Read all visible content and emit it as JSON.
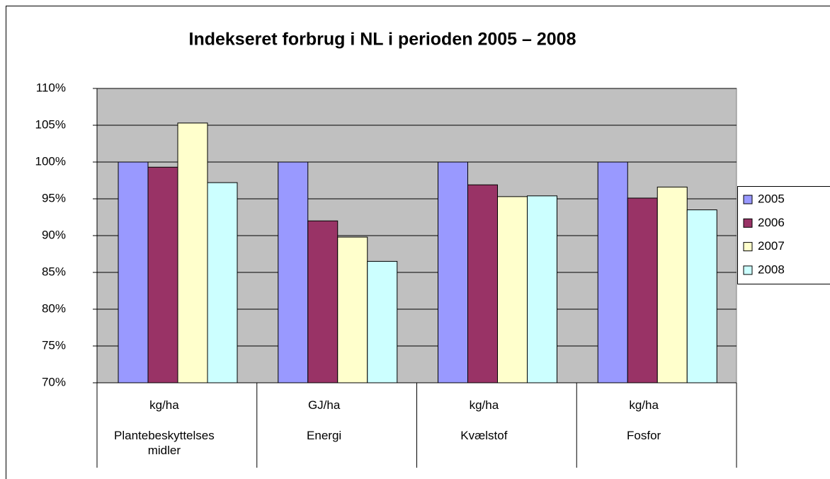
{
  "chart_data": {
    "type": "bar",
    "title": "Indekseret forbrug i NL  i perioden 2005 – 2008",
    "categories": [
      "Plantebeskyttelses midler",
      "Energi",
      "Kvælstof",
      "Fosfor"
    ],
    "units": [
      "kg/ha",
      "GJ/ha",
      "kg/ha",
      "kg/ha"
    ],
    "series": [
      {
        "name": "2005",
        "color": "#9999ff",
        "values": [
          100,
          100,
          100,
          100
        ]
      },
      {
        "name": "2006",
        "color": "#993366",
        "values": [
          99.3,
          92,
          96.9,
          95.1
        ]
      },
      {
        "name": "2007",
        "color": "#ffffcc",
        "values": [
          105.3,
          89.8,
          95.3,
          96.6
        ]
      },
      {
        "name": "2008",
        "color": "#ccffff",
        "values": [
          97.2,
          86.5,
          95.4,
          93.5
        ]
      }
    ],
    "ylim": [
      70,
      110
    ],
    "yticks": [
      {
        "value": 70,
        "label": "70%"
      },
      {
        "value": 75,
        "label": "75%"
      },
      {
        "value": 80,
        "label": "80%"
      },
      {
        "value": 85,
        "label": "85%"
      },
      {
        "value": 90,
        "label": "90%"
      },
      {
        "value": 95,
        "label": "95%"
      },
      {
        "value": 100,
        "label": "100%"
      },
      {
        "value": 105,
        "label": "105%"
      },
      {
        "value": 110,
        "label": "110%"
      }
    ],
    "grid": true,
    "legend": "right",
    "plot_background": "#c0c0c0"
  }
}
